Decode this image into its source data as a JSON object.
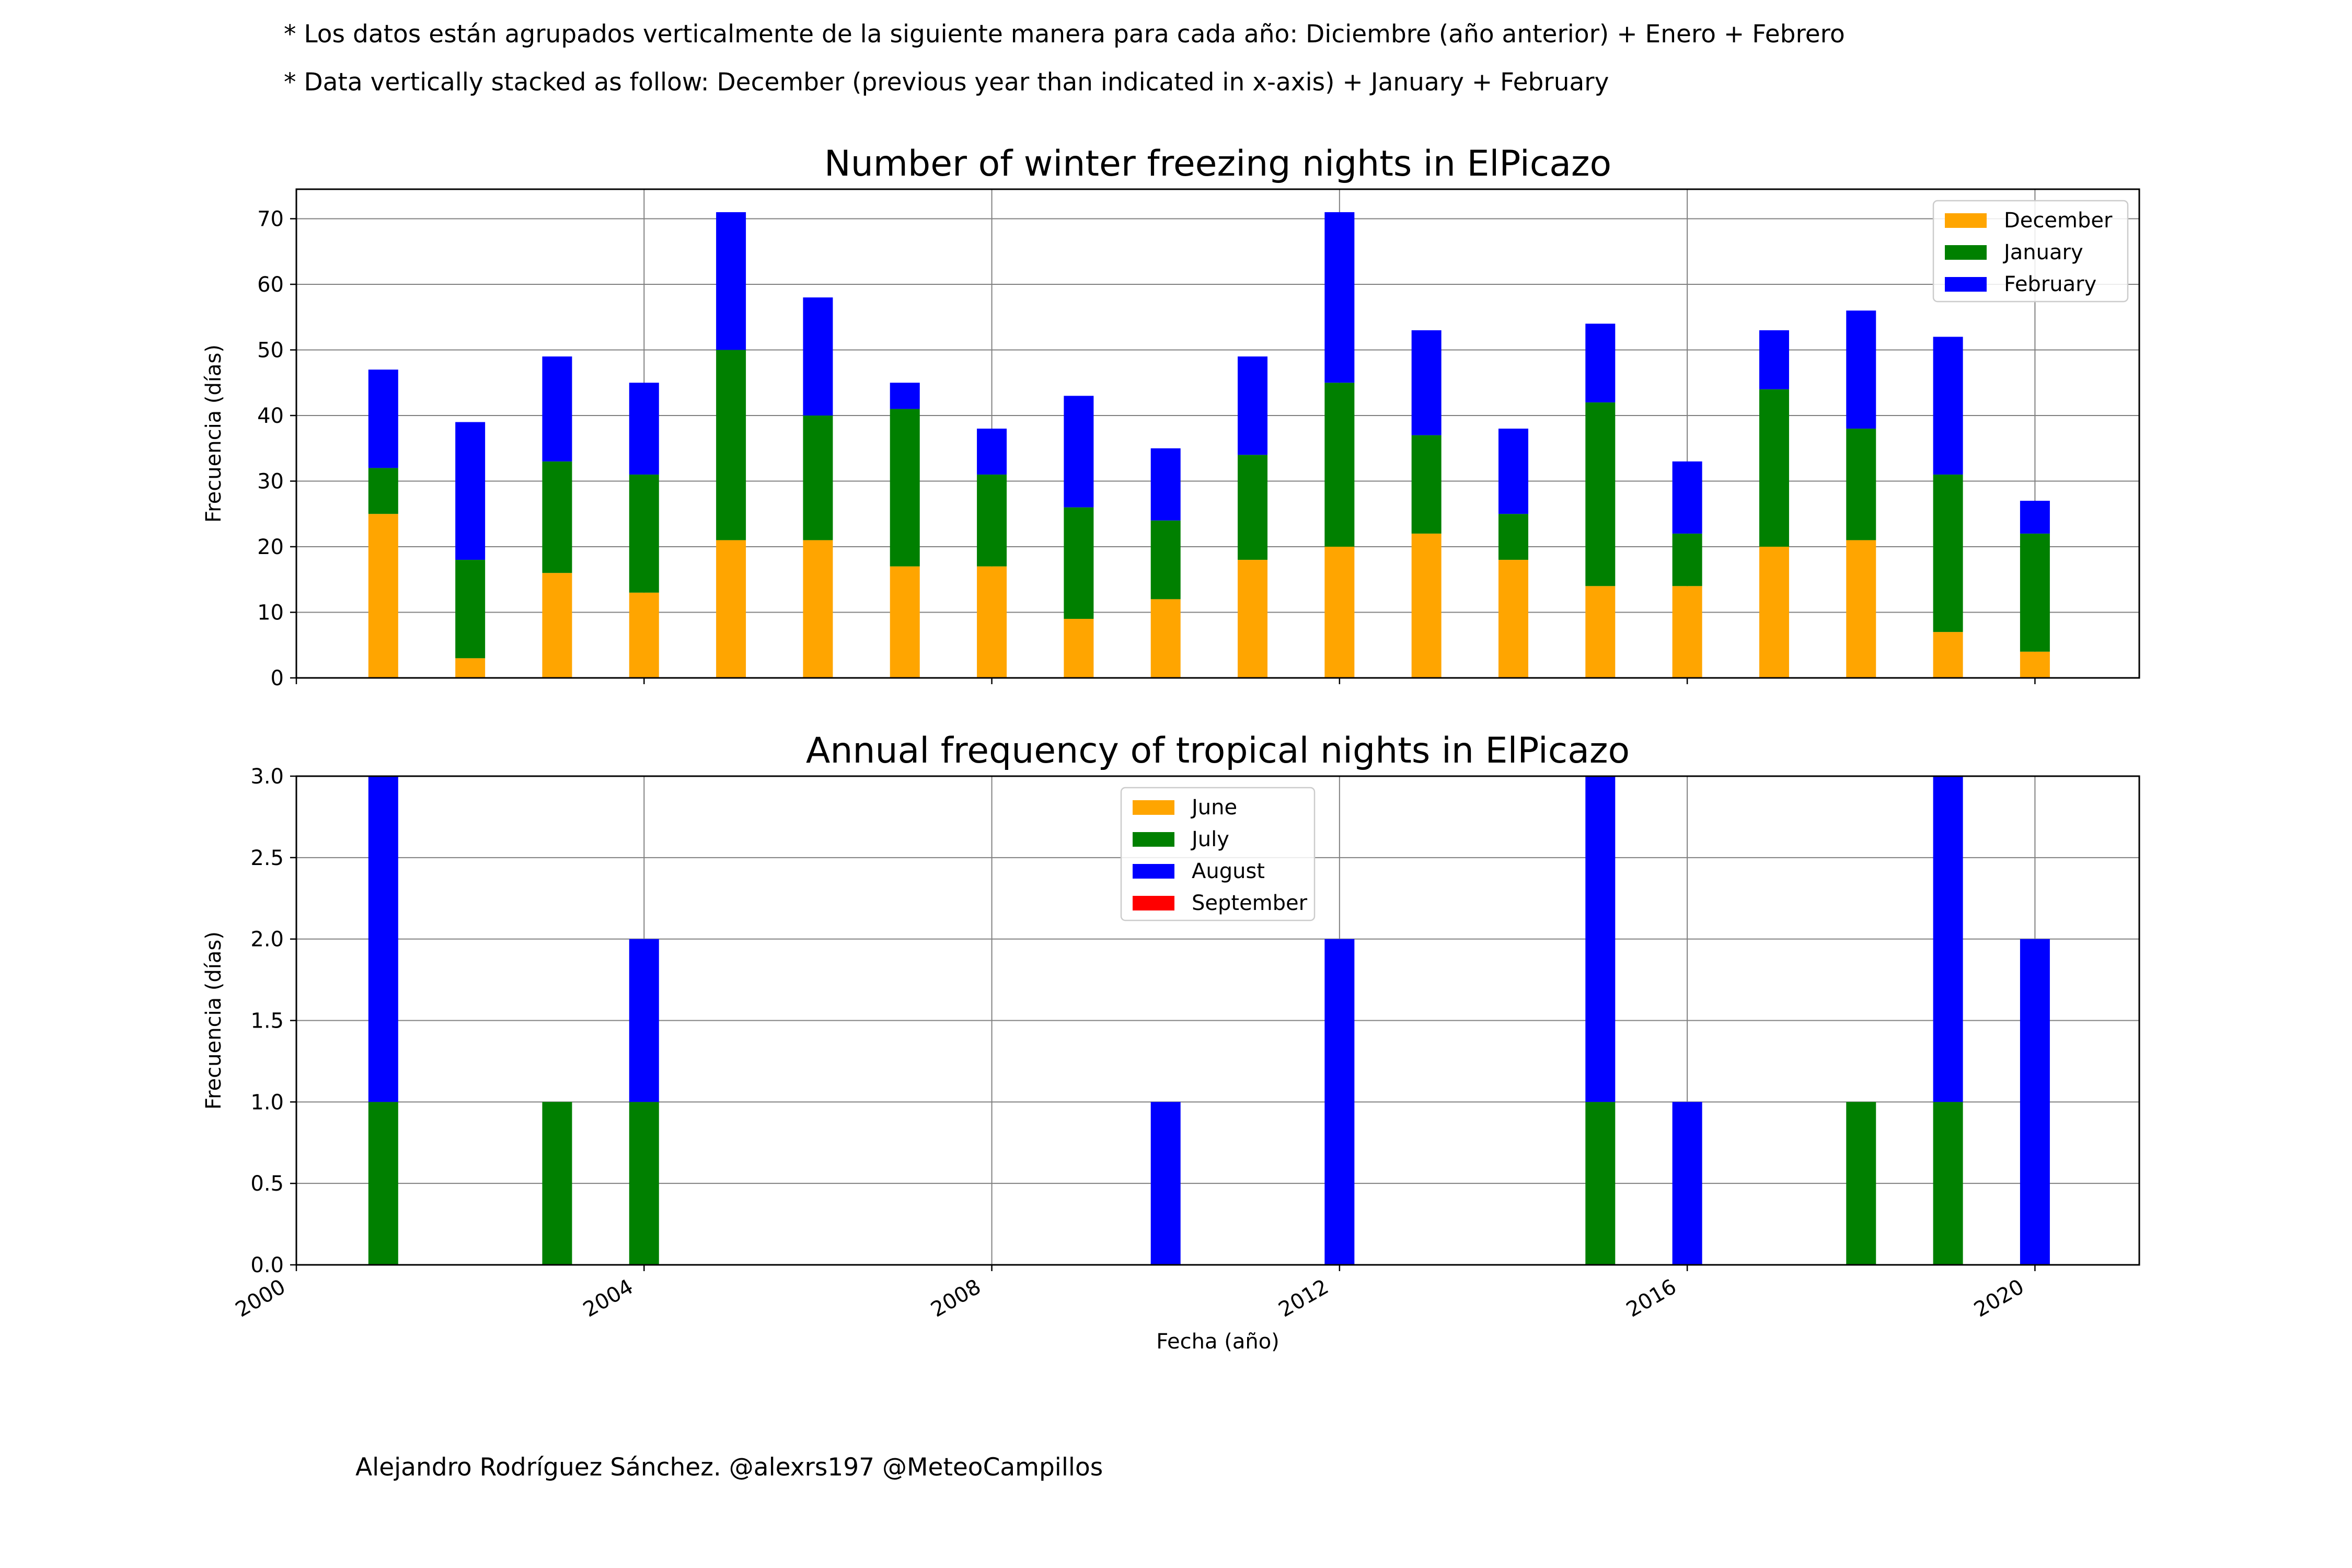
{
  "header": {
    "note_es": "* Los datos están agrupados verticalmente de la siguiente manera para cada año: Diciembre (año anterior) + Enero  + Febrero",
    "note_en": "* Data vertically stacked as follow: December (previous year than indicated in x-axis) + January  + February"
  },
  "footer": {
    "credit": "Alejandro Rodríguez Sánchez. @alexrs197 @MeteoCampillos"
  },
  "chart_data": [
    {
      "type": "bar",
      "stacked": true,
      "title": "Number of winter freezing nights in ElPicazo",
      "xlabel": "",
      "ylabel": "Frecuencia (días)",
      "xlim": [
        2000,
        2021.2
      ],
      "ylim": [
        0,
        74.5
      ],
      "yticks": [
        0,
        10,
        20,
        30,
        40,
        50,
        60,
        70
      ],
      "xticks": [
        2000,
        2004,
        2008,
        2012,
        2016,
        2020
      ],
      "show_xtick_labels": false,
      "grid": true,
      "legend_position": "top-right",
      "x": [
        2001,
        2002,
        2003,
        2004,
        2005,
        2006,
        2007,
        2008,
        2009,
        2010,
        2011,
        2012,
        2013,
        2014,
        2015,
        2016,
        2017,
        2018,
        2019,
        2020
      ],
      "series": [
        {
          "name": "December",
          "color": "#ffa500",
          "values": [
            25,
            3,
            16,
            13,
            21,
            21,
            17,
            17,
            9,
            12,
            18,
            20,
            22,
            18,
            14,
            14,
            20,
            21,
            7,
            4
          ]
        },
        {
          "name": "January",
          "color": "#008000",
          "values": [
            7,
            15,
            17,
            18,
            29,
            19,
            24,
            14,
            17,
            12,
            16,
            25,
            15,
            7,
            28,
            8,
            24,
            17,
            24,
            18
          ]
        },
        {
          "name": "February",
          "color": "#0000ff",
          "values": [
            15,
            21,
            16,
            14,
            21,
            18,
            4,
            7,
            17,
            11,
            15,
            26,
            16,
            13,
            12,
            11,
            9,
            18,
            21,
            5
          ]
        }
      ]
    },
    {
      "type": "bar",
      "stacked": true,
      "title": "Annual frequency of tropical nights in ElPicazo",
      "xlabel": "Fecha (año)",
      "ylabel": "Frecuencia (días)",
      "xlim": [
        2000,
        2021.2
      ],
      "ylim": [
        0,
        3.0
      ],
      "yticks": [
        "0.0",
        "0.5",
        "1.0",
        "1.5",
        "2.0",
        "2.5",
        "3.0"
      ],
      "xticks": [
        2000,
        2004,
        2008,
        2012,
        2016,
        2020
      ],
      "show_xtick_labels": true,
      "grid": true,
      "legend_position": "top-center",
      "x": [
        2001,
        2002,
        2003,
        2004,
        2005,
        2006,
        2007,
        2008,
        2009,
        2010,
        2011,
        2012,
        2013,
        2014,
        2015,
        2016,
        2017,
        2018,
        2019,
        2020
      ],
      "series": [
        {
          "name": "June",
          "color": "#ffa500",
          "values": [
            0,
            0,
            0,
            0,
            0,
            0,
            0,
            0,
            0,
            0,
            0,
            0,
            0,
            0,
            0,
            0,
            0,
            0,
            0,
            0
          ]
        },
        {
          "name": "July",
          "color": "#008000",
          "values": [
            1,
            0,
            1,
            1,
            0,
            0,
            0,
            0,
            0,
            0,
            0,
            0,
            0,
            0,
            1,
            0,
            0,
            1,
            1,
            0
          ]
        },
        {
          "name": "August",
          "color": "#0000ff",
          "values": [
            2,
            0,
            0,
            1,
            0,
            0,
            0,
            0,
            0,
            1,
            0,
            2,
            0,
            0,
            2,
            1,
            0,
            0,
            2,
            2
          ]
        },
        {
          "name": "September",
          "color": "#ff0000",
          "values": [
            0,
            0,
            0,
            0,
            0,
            0,
            0,
            0,
            0,
            0,
            0,
            0,
            0,
            0,
            0,
            0,
            0,
            0,
            0,
            0
          ]
        }
      ]
    }
  ]
}
